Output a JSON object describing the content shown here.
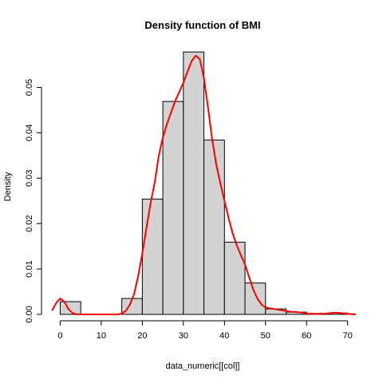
{
  "chart_data": {
    "type": "bar",
    "title": "Density function of BMI",
    "xlabel": "data_numeric[[col]]",
    "ylabel": "Density",
    "xlim": [
      -3,
      72
    ],
    "ylim": [
      0,
      0.058
    ],
    "x_ticks": [
      0,
      10,
      20,
      30,
      40,
      50,
      60,
      70
    ],
    "y_ticks": [
      0.0,
      0.01,
      0.02,
      0.03,
      0.04,
      0.05
    ],
    "y_tick_labels": [
      "0.00",
      "0.01",
      "0.02",
      "0.03",
      "0.04",
      "0.05"
    ],
    "histogram": {
      "name": "",
      "fill": "#d3d3d3",
      "stroke": "#000000",
      "bins": [
        {
          "x0": 0,
          "x1": 5,
          "density": 0.0028
        },
        {
          "x0": 5,
          "x1": 10,
          "density": 0.0
        },
        {
          "x0": 10,
          "x1": 15,
          "density": 0.0
        },
        {
          "x0": 15,
          "x1": 20,
          "density": 0.0035
        },
        {
          "x0": 20,
          "x1": 25,
          "density": 0.0254
        },
        {
          "x0": 25,
          "x1": 30,
          "density": 0.0469
        },
        {
          "x0": 30,
          "x1": 35,
          "density": 0.0578
        },
        {
          "x0": 35,
          "x1": 40,
          "density": 0.0384
        },
        {
          "x0": 40,
          "x1": 45,
          "density": 0.0159
        },
        {
          "x0": 45,
          "x1": 50,
          "density": 0.0069
        },
        {
          "x0": 50,
          "x1": 55,
          "density": 0.0012
        },
        {
          "x0": 55,
          "x1": 60,
          "density": 0.0005
        },
        {
          "x0": 60,
          "x1": 65,
          "density": 0.0002
        },
        {
          "x0": 65,
          "x1": 70,
          "density": 0.0003
        }
      ]
    },
    "density_curve": {
      "name": "",
      "color": "#ff0000",
      "points": [
        [
          -2,
          0.0008
        ],
        [
          -1,
          0.0025
        ],
        [
          0,
          0.0035
        ],
        [
          1,
          0.0028
        ],
        [
          2,
          0.0012
        ],
        [
          3,
          0.0003
        ],
        [
          4,
          0.0
        ],
        [
          10,
          0.0
        ],
        [
          14,
          0.0
        ],
        [
          15,
          0.0002
        ],
        [
          16,
          0.0008
        ],
        [
          17,
          0.0022
        ],
        [
          18,
          0.0045
        ],
        [
          19,
          0.0085
        ],
        [
          20,
          0.0135
        ],
        [
          21,
          0.019
        ],
        [
          22,
          0.0245
        ],
        [
          23,
          0.029
        ],
        [
          24,
          0.035
        ],
        [
          25,
          0.039
        ],
        [
          26,
          0.042
        ],
        [
          27,
          0.0445
        ],
        [
          28,
          0.047
        ],
        [
          29,
          0.049
        ],
        [
          30,
          0.051
        ],
        [
          31,
          0.0535
        ],
        [
          32,
          0.0558
        ],
        [
          33,
          0.057
        ],
        [
          34,
          0.0562
        ],
        [
          35,
          0.052
        ],
        [
          36,
          0.0455
        ],
        [
          37,
          0.0385
        ],
        [
          38,
          0.033
        ],
        [
          39,
          0.0288
        ],
        [
          40,
          0.025
        ],
        [
          41,
          0.0212
        ],
        [
          42,
          0.0178
        ],
        [
          43,
          0.0152
        ],
        [
          44,
          0.013
        ],
        [
          45,
          0.011
        ],
        [
          46,
          0.0082
        ],
        [
          47,
          0.0055
        ],
        [
          48,
          0.0035
        ],
        [
          49,
          0.0022
        ],
        [
          50,
          0.0015
        ],
        [
          52,
          0.0012
        ],
        [
          54,
          0.0009
        ],
        [
          56,
          0.0006
        ],
        [
          58,
          0.0005
        ],
        [
          60,
          0.0002
        ],
        [
          62,
          0.0001
        ],
        [
          65,
          0.0002
        ],
        [
          67,
          0.0004
        ],
        [
          68,
          0.0003
        ],
        [
          70,
          0.0001
        ],
        [
          72,
          0.0
        ]
      ]
    },
    "grid": false,
    "legend": "none"
  }
}
